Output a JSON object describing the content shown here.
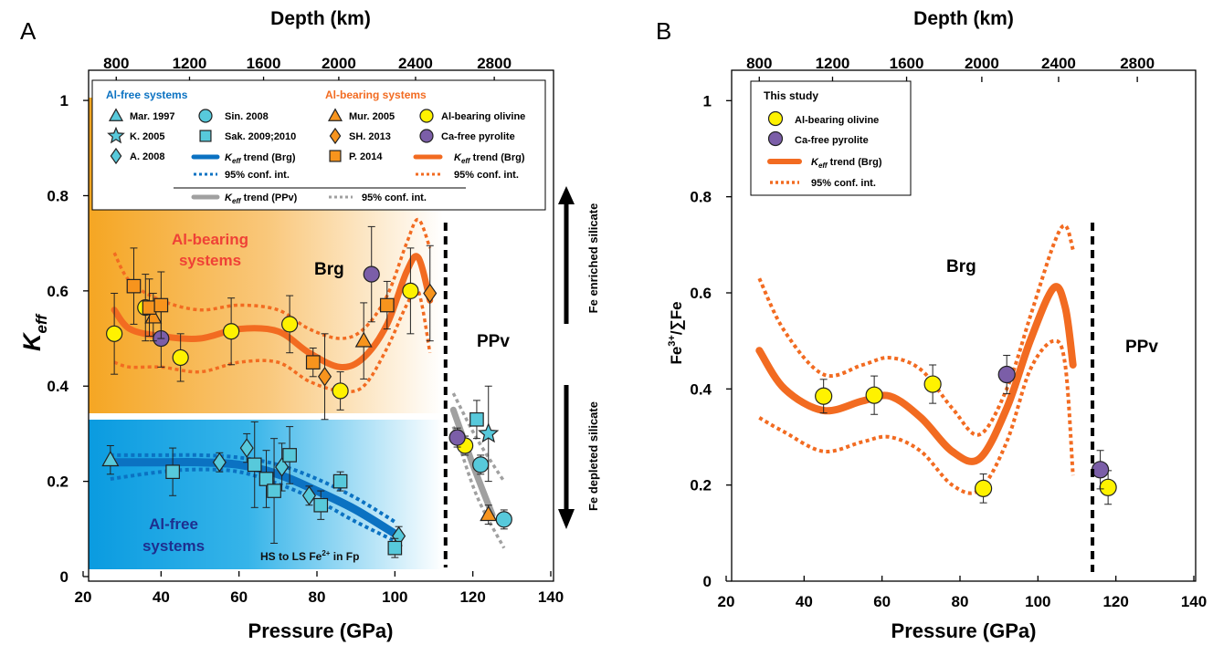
{
  "colors": {
    "orange": "#f26b21",
    "blue": "#0b72c2",
    "gray": "#a0a0a0",
    "yellow": "#fff200",
    "purple": "#7b5ea8",
    "cyan": "#57c9db",
    "amber": "#f7941d",
    "navy": "#1e2f8f",
    "red_text": "#ef4136"
  },
  "panel_labels": {
    "a": "A",
    "b": "B"
  },
  "chart_data": [
    {
      "panel": "A",
      "type": "scatter",
      "xlabel": "Pressure (GPa)",
      "ylabel": "K",
      "ylabel_sub": "eff",
      "x2label": "Depth (km)",
      "xlim": [
        20,
        140
      ],
      "ylim": [
        0,
        1.05
      ],
      "xticks": [
        20,
        40,
        60,
        80,
        100,
        120,
        140
      ],
      "yticks": [
        0,
        0.2,
        0.4,
        0.6,
        0.8,
        1
      ],
      "x2ticks": [
        800,
        1200,
        1600,
        2000,
        2400,
        2800
      ],
      "x2_pressure": [
        28.5,
        47.3,
        66.3,
        85.6,
        105.3,
        125.5
      ],
      "boundary_x": 113,
      "region_labels": {
        "al_bearing": [
          "Al-bearing",
          "systems"
        ],
        "al_free": [
          "Al-free",
          "systems"
        ],
        "brg": "Brg",
        "ppv": "PPv",
        "hs_ls": "HS to LS Fe",
        "hs_ls_sup": "2+",
        "hs_ls_tail": " in Fp"
      },
      "arrows": {
        "up": "Fe enriched silicate",
        "down": "Fe depleted silicate"
      },
      "legend": {
        "left_heading": "Al-free systems",
        "right_heading": "Al-bearing systems",
        "entries": {
          "mar": "Mar. 1997",
          "k05": "K. 2005",
          "a08": "A. 2008",
          "sin": "Sin. 2008",
          "sak": "Sak. 2009;2010",
          "trend": " trend (Brg)",
          "conf": "95% conf. int.",
          "mur": "Mur. 2005",
          "sh": "SH. 2013",
          "p14": "P. 2014",
          "olivine": "Al-bearing olivine",
          "pyrolite": "Ca-free pyrolite",
          "trend_ppv": " trend (PPv)",
          "k": "K",
          "eff": "eff"
        }
      },
      "series": [
        {
          "name": "Al-bearing olivine",
          "marker": "circle",
          "color": "#fff200",
          "points": [
            [
              28,
              0.51,
              0.085
            ],
            [
              36,
              0.565,
              0.07
            ],
            [
              45,
              0.46,
              0.05
            ],
            [
              58,
              0.515,
              0.07
            ],
            [
              73,
              0.53,
              0.06
            ],
            [
              86,
              0.39,
              0.04
            ],
            [
              104,
              0.6,
              0.09
            ],
            [
              118,
              0.275,
              0.02
            ]
          ]
        },
        {
          "name": "Ca-free pyrolite",
          "marker": "circle",
          "color": "#7b5ea8",
          "points": [
            [
              40,
              0.5,
              0.06
            ],
            [
              94,
              0.635,
              0.1
            ],
            [
              116,
              0.292,
              0.02
            ]
          ]
        },
        {
          "name": "Mur. 2005",
          "marker": "triangle",
          "color": "#f7941d",
          "points": [
            [
              38,
              0.545,
              0.05
            ],
            [
              92,
              0.495,
              0.08
            ],
            [
              124,
              0.13,
              0.02
            ]
          ]
        },
        {
          "name": "SH. 2013",
          "marker": "diamond",
          "color": "#f7941d",
          "points": [
            [
              82,
              0.42,
              0.09
            ],
            [
              109,
              0.595,
              0.1
            ]
          ]
        },
        {
          "name": "P. 2014",
          "marker": "square",
          "color": "#f7941d",
          "points": [
            [
              33,
              0.61,
              0.08
            ],
            [
              37,
              0.565,
              0.06
            ],
            [
              40,
              0.57,
              0.07
            ],
            [
              79,
              0.45,
              0.03
            ],
            [
              98,
              0.57,
              0.05
            ]
          ]
        },
        {
          "name": "Mar. 1997",
          "marker": "triangle",
          "color": "#57c9db",
          "points": [
            [
              27,
              0.245,
              0.03
            ]
          ]
        },
        {
          "name": "K. 2005",
          "marker": "star",
          "color": "#57c9db",
          "points": [
            [
              124,
              0.3,
              0.1
            ]
          ]
        },
        {
          "name": "A. 2008",
          "marker": "diamond",
          "color": "#57c9db",
          "points": [
            [
              55,
              0.24,
              0.02
            ],
            [
              62,
              0.27,
              0.03
            ],
            [
              71,
              0.23,
              0.05
            ],
            [
              78,
              0.17,
              0.02
            ],
            [
              101,
              0.085,
              0.02
            ]
          ]
        },
        {
          "name": "Sin. 2008",
          "marker": "circle",
          "color": "#57c9db",
          "points": [
            [
              122,
              0.235,
              0.02
            ],
            [
              128,
              0.12,
              0.02
            ]
          ]
        },
        {
          "name": "Sak. 2009;2010",
          "marker": "square",
          "color": "#57c9db",
          "points": [
            [
              43,
              0.22,
              0.05
            ],
            [
              64,
              0.235,
              0.09
            ],
            [
              67,
              0.205,
              0.06
            ],
            [
              69,
              0.18,
              0.11
            ],
            [
              73,
              0.255,
              0.06
            ],
            [
              81,
              0.15,
              0.03
            ],
            [
              86,
              0.2,
              0.02
            ],
            [
              100,
              0.06,
              0.02
            ],
            [
              121,
              0.33,
              0.04
            ]
          ]
        }
      ],
      "trends": {
        "brg_al_bearing": {
          "x": [
            28,
            32,
            40,
            50,
            60,
            70,
            78,
            86,
            92,
            98,
            103,
            106,
            109
          ],
          "y": [
            0.56,
            0.52,
            0.505,
            0.5,
            0.52,
            0.515,
            0.47,
            0.44,
            0.46,
            0.53,
            0.64,
            0.67,
            0.58
          ],
          "upper": [
            0.68,
            0.62,
            0.58,
            0.56,
            0.57,
            0.56,
            0.52,
            0.5,
            0.52,
            0.59,
            0.7,
            0.75,
            0.69
          ],
          "lower": [
            0.45,
            0.44,
            0.44,
            0.43,
            0.45,
            0.45,
            0.41,
            0.39,
            0.4,
            0.48,
            0.57,
            0.6,
            0.47
          ]
        },
        "brg_al_free": {
          "x": [
            27,
            40,
            50,
            60,
            70,
            80,
            90,
            100
          ],
          "y": [
            0.24,
            0.24,
            0.24,
            0.235,
            0.215,
            0.18,
            0.14,
            0.09
          ],
          "upper": [
            0.255,
            0.255,
            0.255,
            0.25,
            0.235,
            0.205,
            0.165,
            0.115
          ],
          "lower": [
            0.205,
            0.22,
            0.225,
            0.22,
            0.195,
            0.16,
            0.115,
            0.075
          ]
        },
        "ppv": {
          "x": [
            115,
            120,
            125
          ],
          "y": [
            0.35,
            0.235,
            0.13
          ],
          "upper": [
            0.385,
            0.29,
            0.2
          ],
          "lower": [
            0.315,
            0.17,
            0.06
          ],
          "upper_x": [
            115,
            121,
            128
          ],
          "lower_x": [
            115,
            121,
            128
          ]
        }
      }
    },
    {
      "panel": "B",
      "type": "scatter",
      "xlabel": "Pressure (GPa)",
      "ylabel": "Fe3+/∑Fe",
      "ylabel_parts": [
        "Fe",
        "3+",
        "/∑Fe"
      ],
      "x2label": "Depth (km)",
      "xlim": [
        20,
        140
      ],
      "ylim": [
        0,
        1.05
      ],
      "xticks": [
        20,
        40,
        60,
        80,
        100,
        120,
        140
      ],
      "yticks": [
        0,
        0.2,
        0.4,
        0.6,
        0.8,
        1
      ],
      "x2ticks": [
        800,
        1200,
        1600,
        2000,
        2400,
        2800
      ],
      "x2_pressure": [
        28.5,
        47.3,
        66.3,
        85.6,
        105.3,
        125.5
      ],
      "boundary_x": 114,
      "region_labels": {
        "brg": "Brg",
        "ppv": "PPv"
      },
      "legend": {
        "heading": "This study",
        "olivine": "Al-bearing olivine",
        "pyrolite": "Ca-free pyrolite",
        "trend": " trend (Brg)",
        "conf": "95% conf. int.",
        "k": "K",
        "eff": "eff"
      },
      "series": [
        {
          "name": "Al-bearing olivine",
          "marker": "circle",
          "color": "#fff200",
          "points": [
            [
              45,
              0.385,
              0.035
            ],
            [
              58,
              0.387,
              0.04
            ],
            [
              73,
              0.41,
              0.04
            ],
            [
              86,
              0.193,
              0.03
            ],
            [
              118,
              0.195,
              0.035
            ]
          ]
        },
        {
          "name": "Ca-free pyrolite",
          "marker": "circle",
          "color": "#7b5ea8",
          "points": [
            [
              92,
              0.43,
              0.04
            ],
            [
              116,
              0.232,
              0.04
            ]
          ]
        }
      ],
      "trends": {
        "brg": {
          "x": [
            28.5,
            35,
            45,
            55,
            62,
            70,
            78,
            85,
            92,
            98,
            104,
            107,
            109
          ],
          "y": [
            0.48,
            0.4,
            0.355,
            0.375,
            0.385,
            0.34,
            0.27,
            0.255,
            0.36,
            0.5,
            0.61,
            0.57,
            0.45
          ],
          "upper": [
            0.63,
            0.52,
            0.43,
            0.45,
            0.465,
            0.44,
            0.36,
            0.305,
            0.4,
            0.55,
            0.7,
            0.74,
            0.69
          ],
          "lower": [
            0.34,
            0.31,
            0.27,
            0.29,
            0.3,
            0.27,
            0.2,
            0.19,
            0.29,
            0.44,
            0.5,
            0.45,
            0.22
          ]
        }
      }
    }
  ]
}
